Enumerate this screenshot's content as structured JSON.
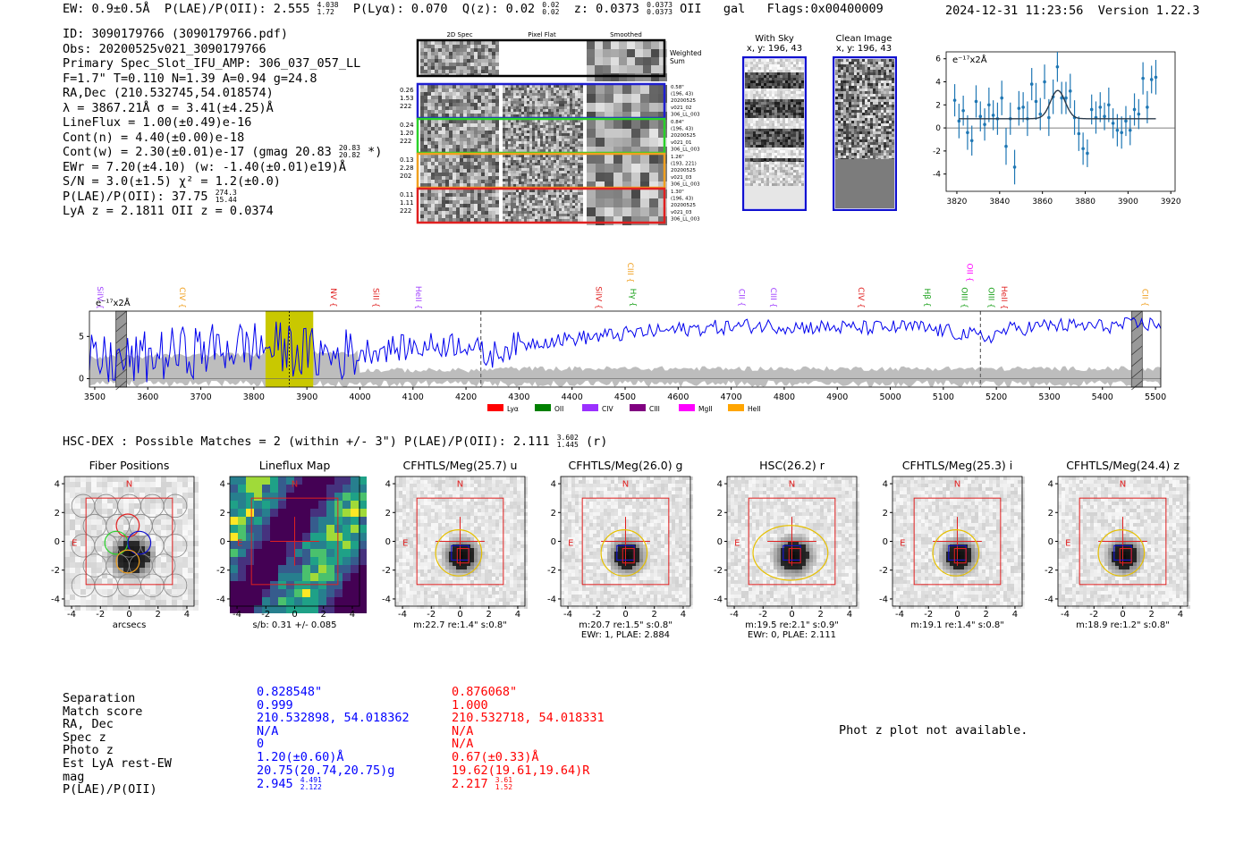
{
  "header": {
    "ew": "EW: 0.9±0.5Å",
    "plae_label": "P(LAE)/P(OII): 2.555",
    "plae_hi": "4.038",
    "plae_lo": "1.72",
    "plya": "P(Lyα): 0.070",
    "qz_label": "Q(z): 0.02",
    "qz_hi": "0.02",
    "qz_lo": "0.02",
    "z_label": "z: 0.0373",
    "z_hi": "0.0373",
    "z_lo": "0.0373",
    "z_line": "OII",
    "gal": "gal",
    "flags": "Flags:0x00400009",
    "datetime": "2024-12-31 11:23:56",
    "version": "Version 1.22.3"
  },
  "info": {
    "id": "ID: 3090179766 (3090179766.pdf)",
    "obs": "Obs: 20200525v021_3090179766",
    "primary": "Primary Spec_Slot_IFU_AMP: 306_037_057_LL",
    "fline": "F=1.7\"  T=0.110  N=1.39  A=0.94  g=24.8",
    "radec": "RA,Dec (210.532745,54.018574)",
    "lambda": "λ = 3867.21Å  σ = 3.41(±4.25)Å",
    "lineflux": "LineFlux = 1.00(±0.49)e-16",
    "contn": "Cont(n) = 4.40(±0.00)e-18",
    "contw_label": "Cont(w) = 2.30(±0.01)e-17 (gmag 20.83",
    "contw_hi": "20.83",
    "contw_lo": "20.82",
    "contw_end": "*)",
    "ewr": "EWr = 7.20(±4.10) (w: -1.40(±0.01)e19)Å",
    "sn": "S/N = 3.0(±1.5)  χ² = 1.2(±0.0)",
    "plae_label": "P(LAE)/P(OII): 37.75",
    "plae_hi": "274.3",
    "plae_lo": "15.44",
    "lyaz": "LyA z = 2.1811  OII z = 0.0374"
  },
  "cutouts": {
    "col_headers": [
      "2D Spec",
      "Pixel Flat",
      "Smoothed"
    ],
    "weighted_sum": [
      "Weighted",
      "Sum"
    ],
    "rows": [
      {
        "left": [
          "0.26",
          "1.53",
          "222"
        ],
        "right": [
          "0.58\"",
          "(196, 43)",
          "20200525",
          "v021_02",
          "306_LL_003"
        ],
        "color": "#1f1fd0"
      },
      {
        "left": [
          "0.24",
          "1.20",
          "222"
        ],
        "right": [
          "0.84\"",
          "(196, 43)",
          "20200525",
          "v021_01",
          "306_LL_003"
        ],
        "color": "#2ad02a"
      },
      {
        "left": [
          "0.13",
          "2.28",
          "202"
        ],
        "right": [
          "1.26\"",
          "(193, 221)",
          "20200525",
          "v021_03",
          "306_LL_003"
        ],
        "color": "#f0a020"
      },
      {
        "left": [
          "0.11",
          "1.11",
          "222"
        ],
        "right": [
          "1.30\"",
          "(196, 43)",
          "20200525",
          "v021_03",
          "306_LL_003"
        ],
        "color": "#e02020"
      }
    ],
    "with_sky": [
      "With Sky",
      "x, y: 196, 43"
    ],
    "clean_image": [
      "Clean Image",
      "x, y: 196, 43"
    ]
  },
  "fit_chart_unit": "e⁻¹⁷x2Å",
  "spectrum_unit": "e⁻¹⁷x2Å",
  "chart_data": [
    {
      "type": "scatter",
      "title": "Emission line fit",
      "xlabel": "",
      "ylabel": "",
      "xlim": [
        3815,
        3922
      ],
      "ylim": [
        -5.5,
        6.6
      ],
      "xticks": [
        3820,
        3840,
        3860,
        3880,
        3900,
        3920
      ],
      "yticks": [
        -4,
        -2,
        0,
        2,
        4,
        6
      ],
      "x": [
        3819,
        3821,
        3823,
        3825,
        3827,
        3829,
        3831,
        3833,
        3835,
        3837,
        3839,
        3841,
        3843,
        3845,
        3847,
        3849,
        3851,
        3853,
        3855,
        3857,
        3859,
        3861,
        3863,
        3865,
        3867,
        3869,
        3871,
        3873,
        3875,
        3877,
        3879,
        3881,
        3883,
        3885,
        3887,
        3889,
        3891,
        3893,
        3895,
        3897,
        3899,
        3901,
        3903,
        3905,
        3907,
        3909,
        3911,
        3913
      ],
      "y": [
        2.4,
        0.6,
        1.5,
        -0.4,
        -1.1,
        2.3,
        1.0,
        0.3,
        2.0,
        1.1,
        0.8,
        2.6,
        -1.6,
        0.8,
        -3.4,
        1.7,
        1.8,
        0.8,
        3.8,
        2.3,
        1.2,
        4.0,
        0.9,
        2.7,
        5.3,
        2.6,
        2.6,
        3.2,
        0.9,
        -0.5,
        -1.8,
        -2.2,
        1.6,
        0.9,
        1.8,
        1.0,
        2.0,
        0.4,
        -0.2,
        -0.4,
        0.6,
        -0.2,
        1.6,
        1.2,
        4.3,
        1.8,
        4.2,
        4.4
      ],
      "yerr": [
        1.4,
        1.5,
        1.3,
        1.5,
        1.3,
        1.4,
        1.3,
        1.4,
        1.5,
        1.3,
        1.4,
        1.5,
        1.6,
        1.4,
        1.5,
        1.5,
        1.3,
        1.5,
        1.4,
        1.6,
        1.4,
        1.5,
        1.6,
        1.5,
        1.3,
        1.4,
        1.4,
        1.5,
        1.5,
        1.5,
        1.4,
        1.2,
        1.3,
        1.4,
        1.3,
        1.2,
        1.5,
        1.3,
        1.4,
        1.4,
        1.3,
        1.3,
        1.4,
        1.3,
        1.4,
        1.4,
        1.2,
        1.5
      ],
      "model": {
        "baseline": 0.8,
        "amplitude": 2.45,
        "center": 3867.2,
        "sigma": 3.41
      }
    },
    {
      "type": "line",
      "title": "Full spectrum",
      "xlim": [
        3490,
        5510
      ],
      "ylim": [
        -1.0,
        8.0
      ],
      "xticks": [
        3500,
        3600,
        3700,
        3800,
        3900,
        4000,
        4100,
        4200,
        4300,
        4400,
        4500,
        4600,
        4700,
        4800,
        4900,
        5000,
        5100,
        5200,
        5300,
        5400,
        5500
      ],
      "yticks": [
        0,
        5
      ],
      "series_points": [
        [
          3490,
          2.0
        ],
        [
          3560,
          2.0
        ],
        [
          3600,
          2.5
        ],
        [
          3650,
          3.0
        ],
        [
          3700,
          3.3
        ],
        [
          3760,
          3.8
        ],
        [
          3820,
          3.8
        ],
        [
          3870,
          3.5
        ],
        [
          3900,
          3.0
        ],
        [
          3950,
          2.7
        ],
        [
          4000,
          3.2
        ],
        [
          4040,
          3.5
        ],
        [
          4100,
          3.7
        ],
        [
          4150,
          4.0
        ],
        [
          4200,
          4.3
        ],
        [
          4240,
          2.5
        ],
        [
          4280,
          3.8
        ],
        [
          4350,
          4.5
        ],
        [
          4450,
          5.0
        ],
        [
          4550,
          5.6
        ],
        [
          4650,
          6.0
        ],
        [
          4750,
          6.3
        ],
        [
          4850,
          6.1
        ],
        [
          4950,
          6.0
        ],
        [
          5050,
          6.1
        ],
        [
          5150,
          5.2
        ],
        [
          5180,
          4.8
        ],
        [
          5220,
          5.8
        ],
        [
          5300,
          6.3
        ],
        [
          5400,
          6.2
        ],
        [
          5500,
          6.5
        ]
      ],
      "highlight_band": [
        3822,
        3912
      ],
      "emission_center": 3867,
      "dashed_lines": [
        4228,
        5170
      ],
      "hatched_bars": [
        3550,
        5465
      ],
      "lines": [
        {
          "name": "SiIV",
          "w": 3500,
          "color": "#a040ff"
        },
        {
          "name": "CIV",
          "w": 3655,
          "color": "#f0a020"
        },
        {
          "name": "NV",
          "w": 3940,
          "color": "#e02020"
        },
        {
          "name": "SiII",
          "w": 4020,
          "color": "#e02020"
        },
        {
          "name": "HeII",
          "w": 4100,
          "color": "#a040ff"
        },
        {
          "name": "SiIV",
          "w": 4440,
          "color": "#e02020"
        },
        {
          "name": "CIII",
          "w": 4500,
          "color": "#f0a020"
        },
        {
          "name": "Hγ",
          "w": 4505,
          "color": "#18a018"
        },
        {
          "name": "CII",
          "w": 4710,
          "color": "#a040ff"
        },
        {
          "name": "CIII",
          "w": 4770,
          "color": "#a040ff"
        },
        {
          "name": "CIV",
          "w": 4935,
          "color": "#e02020"
        },
        {
          "name": "Hβ",
          "w": 5060,
          "color": "#18a018"
        },
        {
          "name": "OIII",
          "w": 5130,
          "color": "#18a018"
        },
        {
          "name": "OII",
          "w": 5140,
          "color": "#ff00ff"
        },
        {
          "name": "OIII",
          "w": 5180,
          "color": "#18a018"
        },
        {
          "name": "HeII",
          "w": 5205,
          "color": "#e02020"
        },
        {
          "name": "CII",
          "w": 5470,
          "color": "#f0a020"
        }
      ],
      "legend": [
        {
          "name": "Lyα",
          "color": "#ff0000"
        },
        {
          "name": "OII",
          "color": "#008000"
        },
        {
          "name": "CIV",
          "color": "#9b30ff"
        },
        {
          "name": "CIII",
          "color": "#800080"
        },
        {
          "name": "MgII",
          "color": "#ff00ff"
        },
        {
          "name": "HeII",
          "color": "#ffa500"
        }
      ]
    }
  ],
  "hsc": {
    "title": "HSC-DEX : Possible Matches = 2 (within +/- 3\")  P(LAE)/P(OII): 2.111",
    "hi": "3.602",
    "lo": "1.445",
    "band": "(r)"
  },
  "panels": [
    {
      "title": "Fiber Positions",
      "labels": [
        "arcsecs"
      ]
    },
    {
      "title": "Lineflux Map",
      "labels": [
        "s/b: 0.31 +/- 0.085"
      ]
    },
    {
      "title": "CFHTLS/Meg(25.7) u",
      "labels": [
        "m:22.7  re:1.4\"  s:0.8\""
      ]
    },
    {
      "title": "CFHTLS/Meg(26.0) g",
      "labels": [
        "m:20.7  re:1.5\"  s:0.8\"",
        "EWr: 1, PLAE: 2.884"
      ]
    },
    {
      "title": "HSC(26.2) r",
      "labels": [
        "m:19.5  re:2.1\"  s:0.9\"",
        "EWr: 0, PLAE: 2.111"
      ]
    },
    {
      "title": "CFHTLS/Meg(25.3) i",
      "labels": [
        "m:19.1  re:1.4\"  s:0.8\""
      ]
    },
    {
      "title": "CFHTLS/Meg(24.4) z",
      "labels": [
        "m:18.9  re:1.2\"  s:0.8\""
      ]
    }
  ],
  "panel_ticks": [
    "-4",
    "-2",
    "0",
    "2",
    "4"
  ],
  "panel_y_ticks": [
    "4",
    "2",
    "0",
    "-2",
    "-4"
  ],
  "compass": {
    "n": "N",
    "e": "E"
  },
  "match_table": {
    "labels": [
      "Separation",
      "Match score",
      "RA, Dec",
      "Spec z",
      "Photo z",
      "Est LyA rest-EW",
      "mag",
      "P(LAE)/P(OII)"
    ],
    "blue": [
      "0.828548\"",
      "0.999",
      "210.532898, 54.018362",
      "N/A",
      "0",
      "1.20(±0.60)Å",
      "20.75(20.74,20.75)g"
    ],
    "blue_plae": "2.945",
    "blue_plae_hi": "4.491",
    "blue_plae_lo": "2.122",
    "red": [
      "0.876068\"",
      "1.000",
      "210.532718, 54.018331",
      "N/A",
      "N/A",
      "0.67(±0.33)Å",
      "19.62(19.61,19.64)R"
    ],
    "red_plae": "2.217",
    "red_plae_hi": "3.61",
    "red_plae_lo": "1.52"
  },
  "photz_message": "Phot z plot not available."
}
